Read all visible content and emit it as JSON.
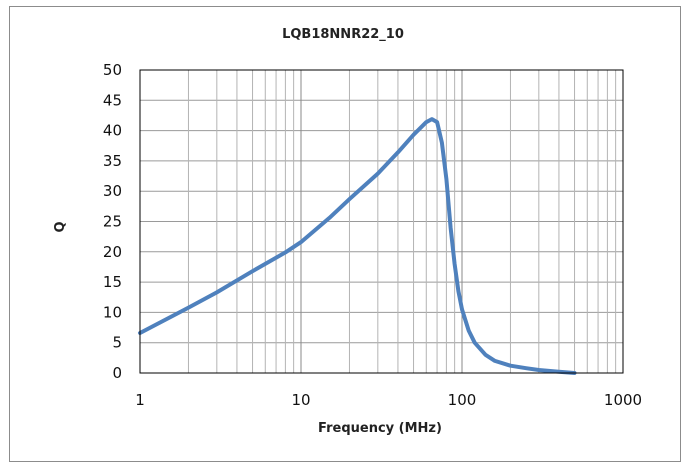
{
  "chart_data": {
    "type": "line",
    "title": "LQB18NNR22_10",
    "xlabel": "Frequency (MHz)",
    "ylabel": "Q",
    "x_scale": "log",
    "xlim": [
      1,
      1000
    ],
    "ylim": [
      0,
      50
    ],
    "x_ticks": [
      "1",
      "10",
      "100",
      "1000"
    ],
    "y_ticks": [
      "0",
      "5",
      "10",
      "15",
      "20",
      "25",
      "30",
      "35",
      "40",
      "45",
      "50"
    ],
    "grid": true,
    "legend": "none",
    "series": [
      {
        "color": "#4f81bd",
        "x": [
          1,
          2,
          3,
          5,
          8,
          10,
          15,
          20,
          30,
          40,
          50,
          60,
          65,
          70,
          75,
          80,
          85,
          90,
          95,
          100,
          110,
          120,
          140,
          160,
          200,
          250,
          300,
          400,
          500
        ],
        "y": [
          6.6,
          10.8,
          13.3,
          16.8,
          19.9,
          21.6,
          25.6,
          28.7,
          32.9,
          36.4,
          39.3,
          41.4,
          41.9,
          41.4,
          38,
          32,
          24,
          18,
          13.5,
          10.5,
          7,
          5,
          3,
          2,
          1.2,
          0.8,
          0.5,
          0.2,
          0
        ]
      }
    ]
  }
}
